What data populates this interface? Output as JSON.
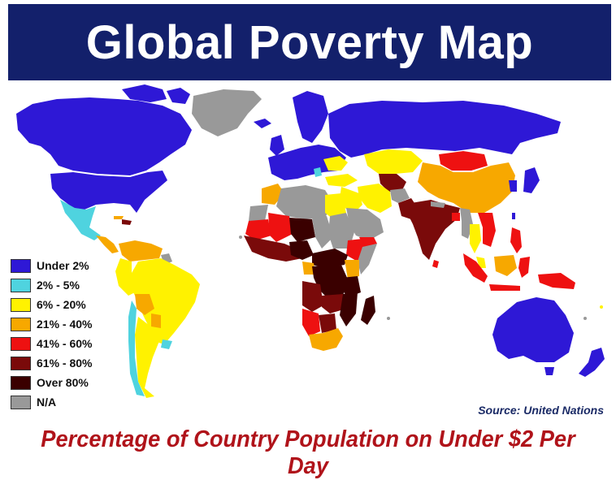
{
  "title": "Global Poverty Map",
  "subtitle": "Percentage of Country Population on Under $2 Per Day",
  "source": "Source: United Nations",
  "colors": {
    "under2": "#2e18d6",
    "p2to5": "#4fd3df",
    "p6to20": "#fff200",
    "p21to40": "#f7a800",
    "p41to60": "#ee1111",
    "p61to80": "#7a0a0a",
    "over80": "#3a0000",
    "na": "#999999",
    "banner": "#13206b",
    "subtitle": "#b0131a"
  },
  "legend": [
    {
      "label": "Under 2%",
      "color": "#2e18d6"
    },
    {
      "label": "2% - 5%",
      "color": "#4fd3df"
    },
    {
      "label": "6% - 20%",
      "color": "#fff200"
    },
    {
      "label": "21% - 40%",
      "color": "#f7a800"
    },
    {
      "label": "41% - 60%",
      "color": "#ee1111"
    },
    {
      "label": "61% - 80%",
      "color": "#7a0a0a"
    },
    {
      "label": "Over 80%",
      "color": "#3a0000"
    },
    {
      "label": "N/A",
      "color": "#999999"
    }
  ]
}
